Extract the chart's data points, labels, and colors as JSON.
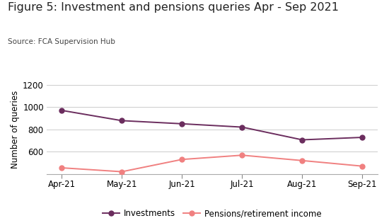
{
  "title": "Figure 5: Investment and pensions queries Apr - Sep 2021",
  "source": "Source: FCA Supervision Hub",
  "ylabel": "Number of queries",
  "categories": [
    "Apr-21",
    "May-21",
    "Jun-21",
    "Jul-21",
    "Aug-21",
    "Sep-21"
  ],
  "investments": [
    970,
    878,
    850,
    820,
    706,
    728
  ],
  "pensions": [
    455,
    420,
    530,
    568,
    520,
    470
  ],
  "investments_color": "#6B2D5E",
  "pensions_color": "#F08080",
  "ylim": [
    400,
    1200
  ],
  "yticks": [
    600,
    800,
    1000,
    1200
  ],
  "background_color": "#FFFFFF",
  "title_fontsize": 11.5,
  "source_fontsize": 7.5,
  "axis_label_fontsize": 8.5,
  "tick_fontsize": 8.5,
  "legend_fontsize": 8.5,
  "line_width": 1.4,
  "marker_size": 5
}
